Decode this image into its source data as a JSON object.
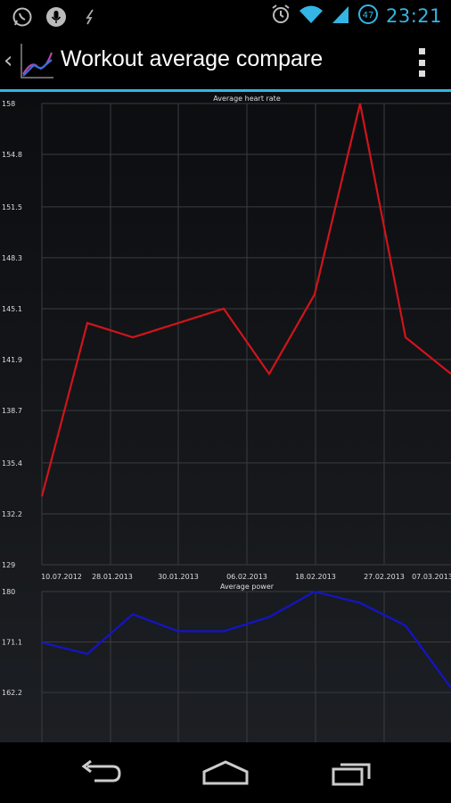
{
  "status_bar": {
    "time": "23:21",
    "battery_level": "47",
    "left_icons": [
      "whatsapp-icon",
      "microphone-icon",
      "lightning-icon"
    ],
    "right_icons": [
      "alarm-icon",
      "wifi-icon",
      "signal-icon",
      "battery-icon"
    ]
  },
  "action_bar": {
    "title": "Workout average compare",
    "up_icon": "chevron-left-icon",
    "app_icon": "chart-logo-icon",
    "overflow_icon": "overflow-menu-icon"
  },
  "colors": {
    "accent": "#33b5e5",
    "heart_rate_line": "#d0141c",
    "power_line": "#1414c8",
    "grid": "#3a3c40",
    "label": "#dddddd"
  },
  "chart_data": [
    {
      "type": "line",
      "title": "Average heart rate",
      "xlabel": "",
      "ylabel": "",
      "ylim": [
        129,
        158
      ],
      "y_ticks": [
        "158",
        "154.8",
        "151.5",
        "148.3",
        "145.1",
        "141.9",
        "138.7",
        "135.4",
        "132.2",
        "129"
      ],
      "x_tick_labels": [
        "10.07.2012",
        "28.01.2013",
        "30.01.2013",
        "06.02.2013",
        "18.02.2013",
        "27.02.2013",
        "07.03.2013"
      ],
      "grid": true,
      "series": [
        {
          "values": [
            133.3,
            144.2,
            143.3,
            144.2,
            145.1,
            141.0,
            146.0,
            158.0,
            143.3,
            141.0
          ]
        }
      ]
    },
    {
      "type": "line",
      "title": "Average power",
      "xlabel": "",
      "ylabel": "",
      "ylim": [
        153.4,
        180
      ],
      "y_ticks": [
        "180",
        "171.1",
        "162.2"
      ],
      "grid": true,
      "series": [
        {
          "values": [
            171.0,
            169.0,
            176.0,
            173.0,
            173.0,
            175.5,
            180.0,
            178.0,
            174.0,
            163.0
          ]
        }
      ]
    }
  ],
  "nav_bar": {
    "back_icon": "back-icon",
    "home_icon": "home-icon",
    "recents_icon": "recent-apps-icon"
  }
}
